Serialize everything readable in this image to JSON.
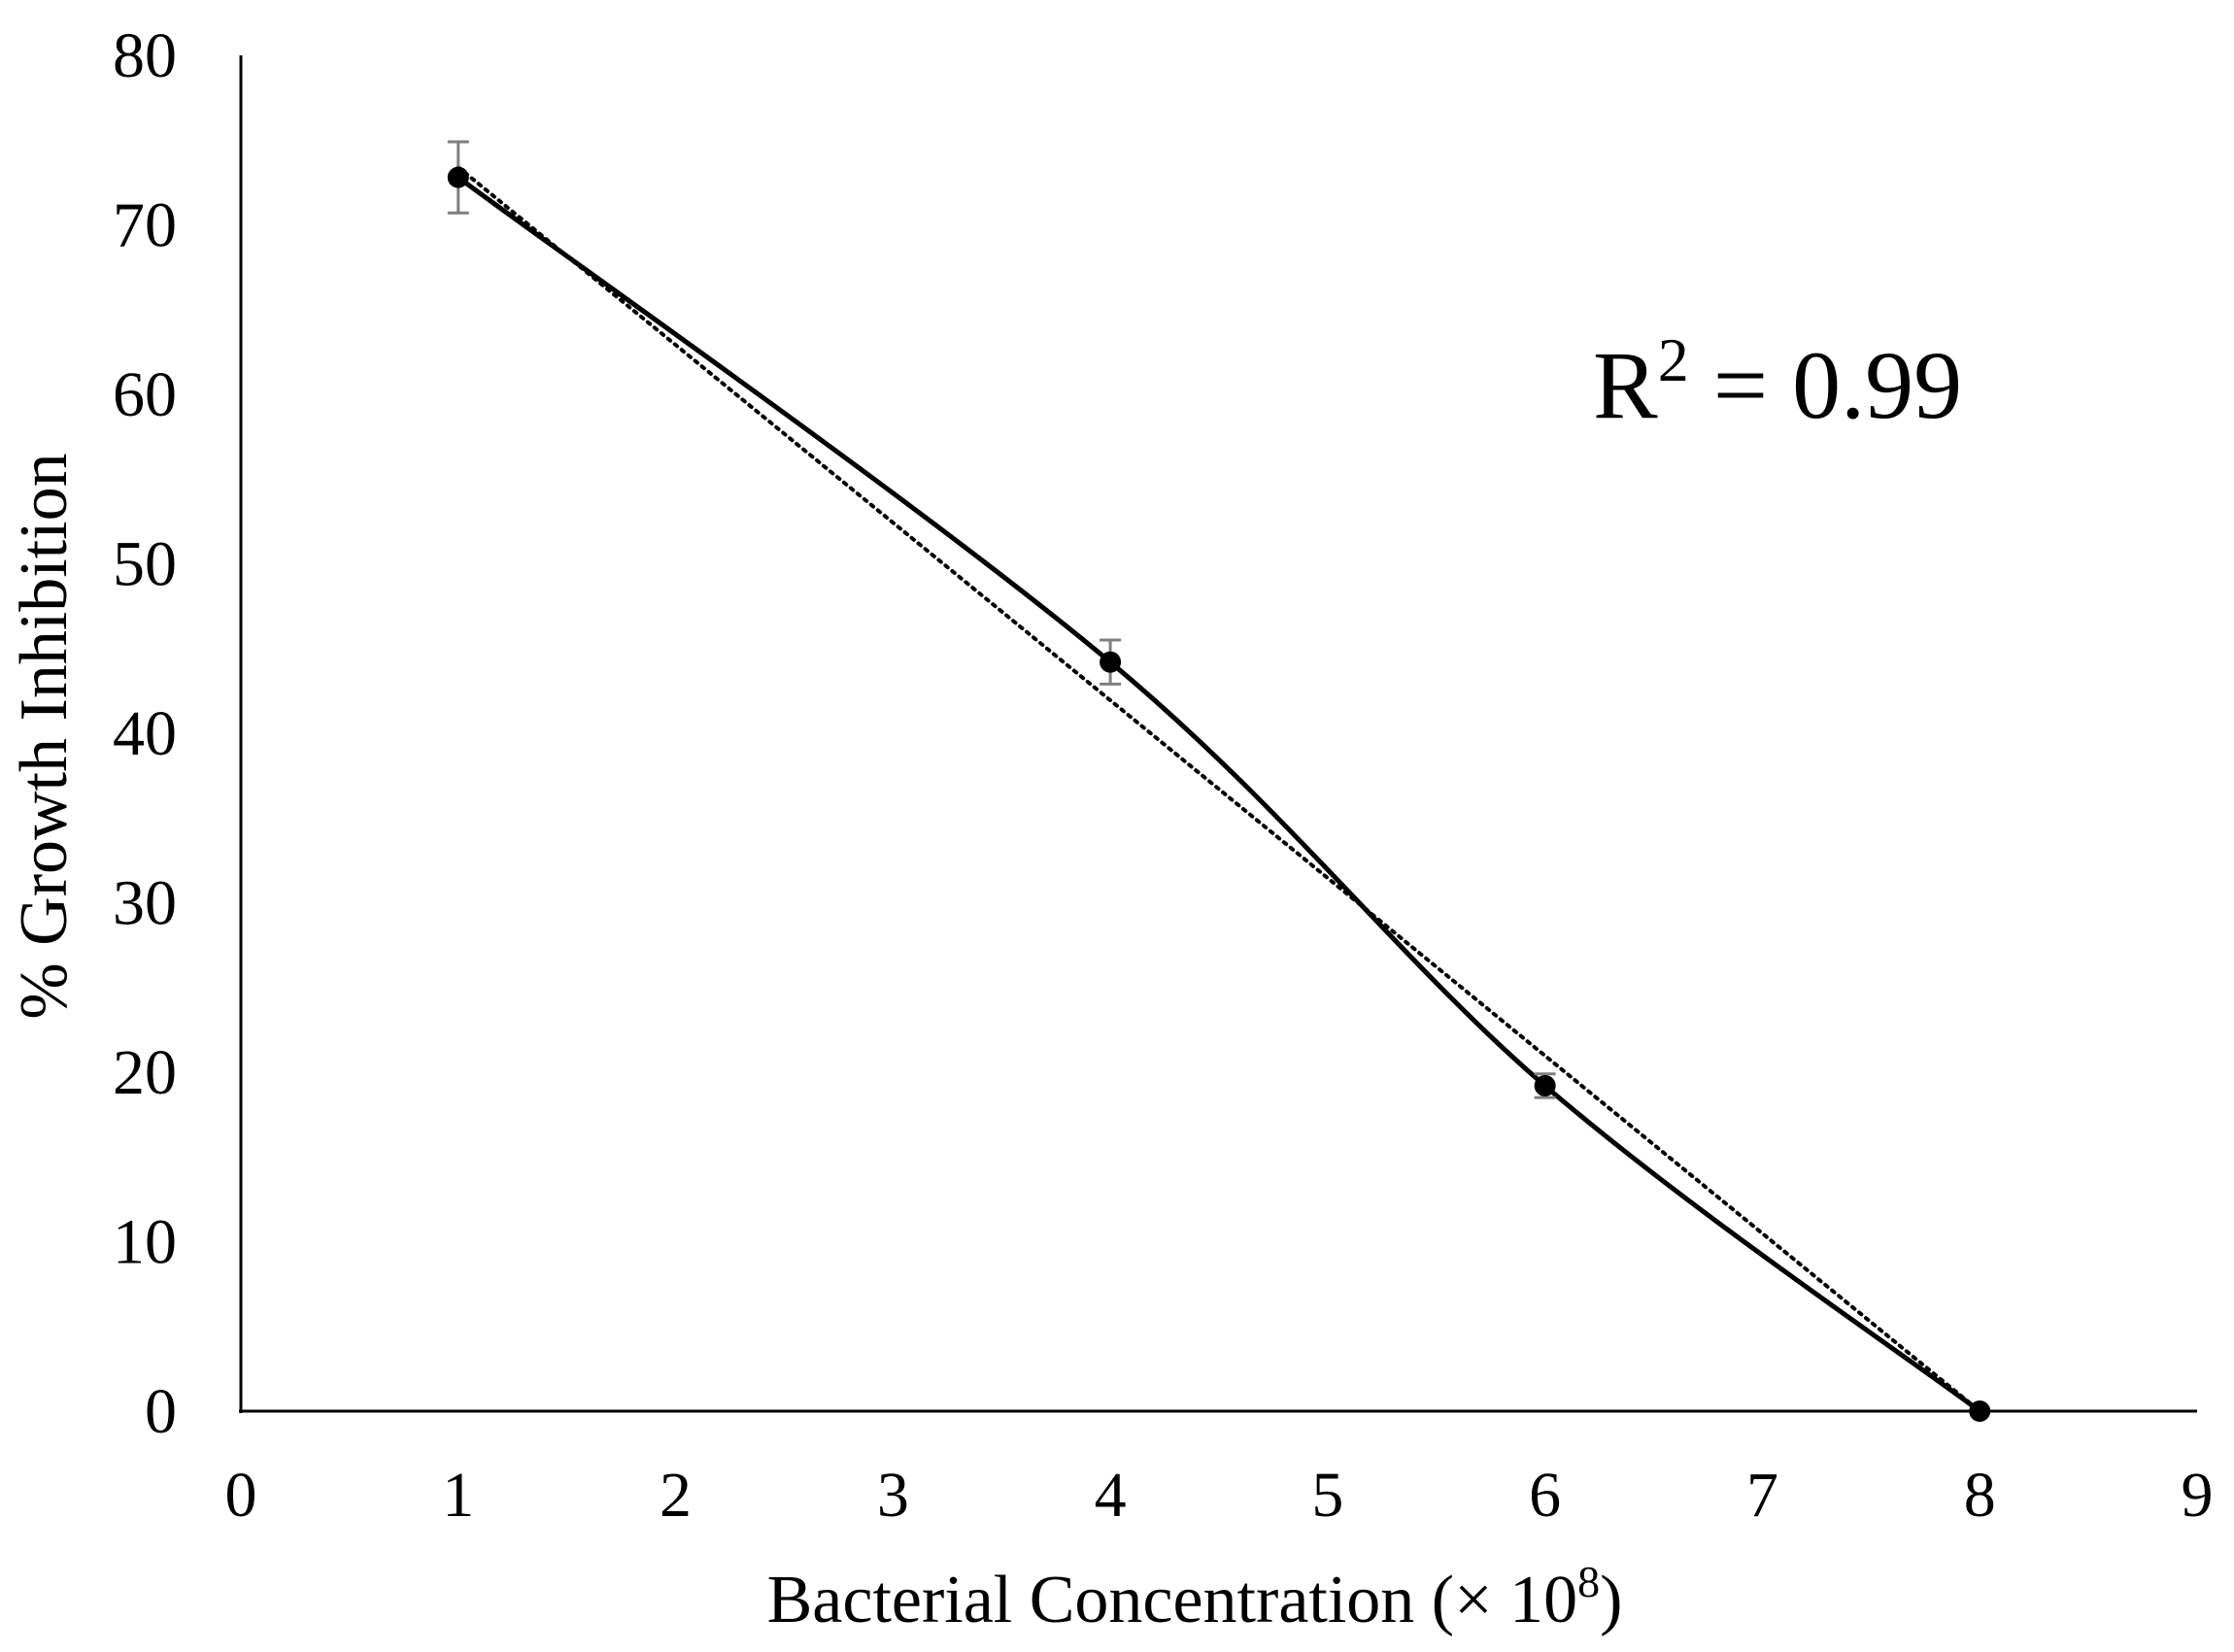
{
  "chart_data": {
    "type": "line",
    "xlabel": "Bacterial Concentration (× 10",
    "xlabel_superscript": "8",
    "xlabel_suffix": ")",
    "ylabel": "% Growth Inhibition",
    "xlim": [
      0,
      9
    ],
    "ylim": [
      0,
      80
    ],
    "x_ticks": [
      "0",
      "1",
      "2",
      "3",
      "4",
      "5",
      "6",
      "7",
      "8",
      "9"
    ],
    "y_ticks": [
      "0",
      "10",
      "20",
      "30",
      "40",
      "50",
      "60",
      "70",
      "80"
    ],
    "grid": false,
    "legend": "none",
    "series": [
      {
        "x": [
          1,
          4,
          6,
          8
        ],
        "y": [
          72.8,
          44.2,
          19.2,
          0
        ],
        "error": [
          2.1,
          1.3,
          0.7,
          0
        ],
        "line_style": "smooth solid",
        "marker": "filled circle",
        "color": "#000000",
        "error_bar_color": "#7f7f7f"
      }
    ],
    "trendline": {
      "type": "linear",
      "line_style": "dotted",
      "color": "#000000",
      "x": [
        1,
        8
      ],
      "y": [
        73.4,
        0
      ]
    },
    "annotation": {
      "text": "R",
      "superscript": "2",
      "suffix": " = 0.99"
    }
  }
}
